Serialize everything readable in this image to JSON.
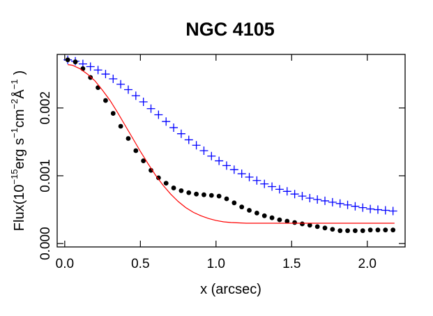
{
  "chart_data": {
    "type": "scatter",
    "title": "NGC 4105",
    "xlabel": "x (arcsec)",
    "ylabel": {
      "base": "Flux(10",
      "exp1": "−15",
      "mid1": "erg s",
      "exp2": "−1",
      "mid2": "cm",
      "exp3": "−2",
      "mid3": "Å",
      "exp4": "−1",
      "end": ")"
    },
    "xlim": [
      -0.05,
      2.25
    ],
    "ylim": [
      -5e-05,
      0.00279
    ],
    "xticks": [
      {
        "value": 0.0,
        "label": "0.0"
      },
      {
        "value": 0.5,
        "label": "0.5"
      },
      {
        "value": 1.0,
        "label": "1.0"
      },
      {
        "value": 1.5,
        "label": "1.5"
      },
      {
        "value": 2.0,
        "label": "2.0"
      }
    ],
    "yticks": [
      {
        "value": 0.0,
        "label": "0.000"
      },
      {
        "value": 0.001,
        "label": "0.001"
      },
      {
        "value": 0.002,
        "label": "0.002"
      }
    ],
    "series": [
      {
        "name": "blue-crosses",
        "marker": "plus",
        "color": "#0000ff",
        "x": [
          0.02,
          0.07,
          0.12,
          0.17,
          0.22,
          0.27,
          0.32,
          0.37,
          0.42,
          0.47,
          0.52,
          0.57,
          0.62,
          0.67,
          0.72,
          0.77,
          0.82,
          0.87,
          0.92,
          0.97,
          1.02,
          1.07,
          1.12,
          1.17,
          1.22,
          1.27,
          1.32,
          1.37,
          1.42,
          1.47,
          1.52,
          1.57,
          1.62,
          1.67,
          1.72,
          1.77,
          1.82,
          1.87,
          1.92,
          1.97,
          2.02,
          2.07,
          2.12,
          2.17
        ],
        "y": [
          0.00271,
          0.00269,
          0.00265,
          0.00261,
          0.00256,
          0.0025,
          0.00243,
          0.00235,
          0.00227,
          0.00218,
          0.00209,
          0.00199,
          0.0019,
          0.0018,
          0.00171,
          0.00162,
          0.00153,
          0.00145,
          0.00137,
          0.00129,
          0.00122,
          0.00115,
          0.00109,
          0.00103,
          0.00098,
          0.00093,
          0.00088,
          0.00084,
          0.0008,
          0.00077,
          0.00073,
          0.0007,
          0.00067,
          0.00065,
          0.00063,
          0.00061,
          0.00059,
          0.00057,
          0.00055,
          0.00053,
          0.00051,
          0.0005,
          0.00049,
          0.00048
        ]
      },
      {
        "name": "black-dots",
        "marker": "dot",
        "color": "#000000",
        "x": [
          0.02,
          0.07,
          0.12,
          0.17,
          0.22,
          0.27,
          0.32,
          0.37,
          0.42,
          0.47,
          0.52,
          0.57,
          0.62,
          0.67,
          0.72,
          0.77,
          0.82,
          0.87,
          0.92,
          0.97,
          1.02,
          1.07,
          1.12,
          1.17,
          1.22,
          1.27,
          1.32,
          1.37,
          1.42,
          1.47,
          1.52,
          1.57,
          1.62,
          1.67,
          1.72,
          1.77,
          1.82,
          1.87,
          1.92,
          1.97,
          2.02,
          2.07,
          2.12,
          2.17
        ],
        "y": [
          0.00271,
          0.00268,
          0.00258,
          0.00245,
          0.0023,
          0.00211,
          0.00192,
          0.00173,
          0.00155,
          0.00137,
          0.00122,
          0.00108,
          0.00097,
          0.00089,
          0.00082,
          0.00078,
          0.00075,
          0.00073,
          0.00072,
          0.00071,
          0.0007,
          0.00066,
          0.0006,
          0.00054,
          0.00049,
          0.00045,
          0.00041,
          0.00038,
          0.00035,
          0.00033,
          0.00031,
          0.00029,
          0.00027,
          0.00025,
          0.00023,
          0.00021,
          0.00019,
          0.00019,
          0.00019,
          0.00019,
          0.0002,
          0.0002,
          0.0002,
          0.0002
        ]
      },
      {
        "name": "red-model-curve",
        "marker": "line",
        "color": "#ff0000",
        "x": [
          0.02,
          0.05,
          0.1,
          0.15,
          0.2,
          0.25,
          0.3,
          0.35,
          0.4,
          0.45,
          0.5,
          0.55,
          0.6,
          0.65,
          0.7,
          0.75,
          0.8,
          0.85,
          0.9,
          0.95,
          1.0,
          1.05,
          1.1,
          1.2,
          1.3,
          1.4,
          1.5,
          1.6,
          1.7,
          1.8,
          1.9,
          2.0,
          2.1,
          2.18
        ],
        "y": [
          0.00264,
          0.00263,
          0.00258,
          0.0025,
          0.0024,
          0.00226,
          0.00211,
          0.00193,
          0.00174,
          0.00155,
          0.00136,
          0.00118,
          0.00101,
          0.00086,
          0.00073,
          0.00062,
          0.00053,
          0.00046,
          0.00041,
          0.00037,
          0.00034,
          0.00032,
          0.00031,
          0.0003,
          0.0003,
          0.0003,
          0.0003,
          0.0003,
          0.0003,
          0.0003,
          0.0003,
          0.0003,
          0.0003,
          0.0003
        ]
      }
    ]
  }
}
